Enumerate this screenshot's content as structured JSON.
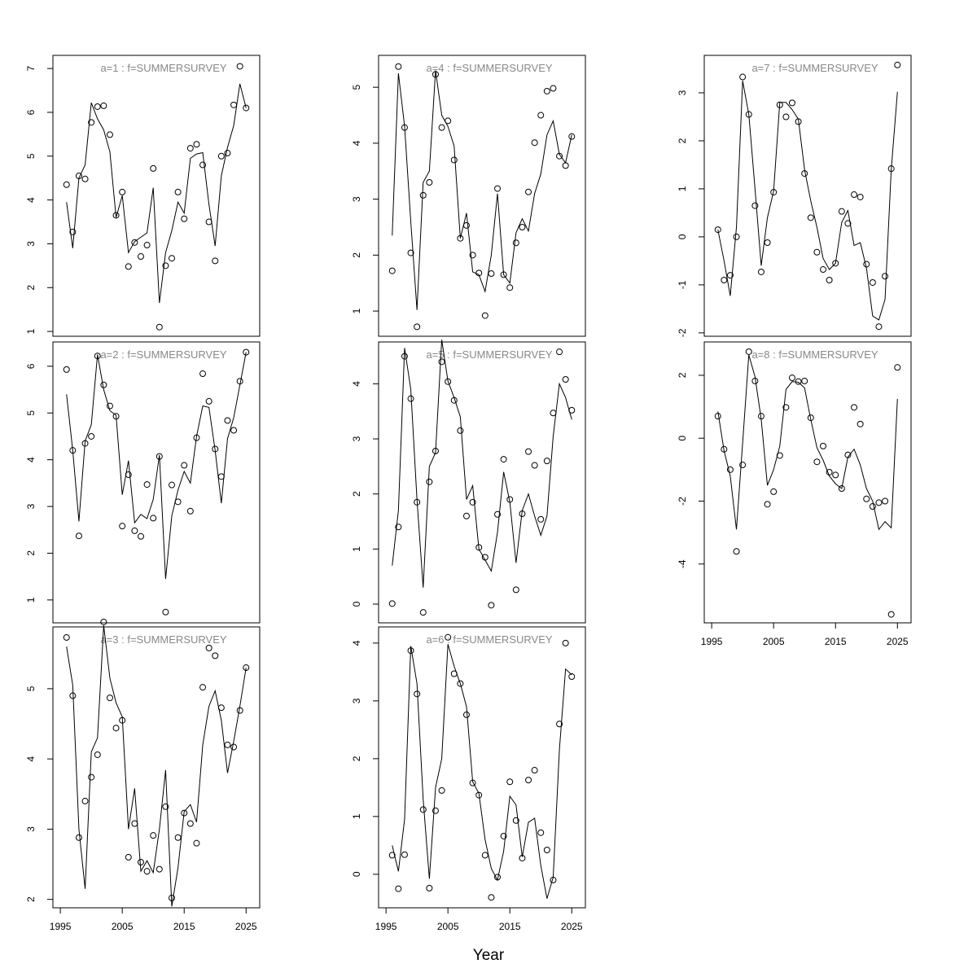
{
  "chart_data": [
    {
      "type": "line",
      "title": "a=1  :  f=SUMMERSURVEY",
      "xlim": [
        1993.8,
        2027.2
      ],
      "ylim": [
        0.89,
        7.3
      ],
      "yticks": [
        1,
        2,
        3,
        4,
        5,
        6,
        7
      ],
      "x": [
        1996,
        1997,
        1998,
        1999,
        2000,
        2001,
        2002,
        2003,
        2004,
        2005,
        2006,
        2007,
        2008,
        2009,
        2010,
        2011,
        2012,
        2013,
        2014,
        2015,
        2016,
        2017,
        2018,
        2019,
        2020,
        2021,
        2022,
        2023,
        2024,
        2025
      ],
      "series": [
        {
          "type": "scatter",
          "color": "#000000",
          "values": [
            4.35,
            3.27,
            4.55,
            4.48,
            5.77,
            6.13,
            6.15,
            5.49,
            3.65,
            4.18,
            2.48,
            3.03,
            2.71,
            2.97,
            4.72,
            1.1,
            2.5,
            2.67,
            4.18,
            3.57,
            5.18,
            5.27,
            4.8,
            3.5,
            2.61,
            5.0,
            5.07,
            6.17,
            7.05,
            6.1
          ]
        },
        {
          "type": "line",
          "color": "#000000",
          "values": [
            3.95,
            2.9,
            4.5,
            4.8,
            6.22,
            5.85,
            5.6,
            5.1,
            3.6,
            4.1,
            2.8,
            3.05,
            3.15,
            3.25,
            4.28,
            1.65,
            2.8,
            3.3,
            3.95,
            3.7,
            4.95,
            5.05,
            5.08,
            3.9,
            2.95,
            4.55,
            5.2,
            5.7,
            6.65,
            6.1
          ]
        }
      ]
    },
    {
      "type": "line",
      "title": "a=2  :  f=SUMMERSURVEY",
      "xlim": [
        1993.8,
        2027.2
      ],
      "ylim": [
        0.51,
        6.52
      ],
      "yticks": [
        1,
        2,
        3,
        4,
        5,
        6
      ],
      "x": [
        1996,
        1997,
        1998,
        1999,
        2000,
        2001,
        2002,
        2003,
        2004,
        2005,
        2006,
        2007,
        2008,
        2009,
        2010,
        2011,
        2012,
        2013,
        2014,
        2015,
        2016,
        2017,
        2018,
        2019,
        2020,
        2021,
        2022,
        2023,
        2024,
        2025
      ],
      "series": [
        {
          "type": "scatter",
          "color": "#000000",
          "values": [
            5.93,
            4.2,
            2.37,
            4.35,
            4.5,
            6.22,
            5.6,
            5.15,
            4.93,
            2.58,
            3.68,
            2.48,
            2.36,
            3.47,
            2.75,
            4.07,
            0.74,
            3.46,
            3.1,
            3.88,
            2.9,
            4.47,
            5.84,
            5.25,
            4.23,
            3.64,
            4.84,
            4.63,
            5.68,
            6.3
          ]
        },
        {
          "type": "line",
          "color": "#000000",
          "values": [
            5.4,
            4.2,
            2.68,
            4.4,
            4.75,
            6.25,
            5.5,
            5.05,
            4.95,
            3.25,
            3.98,
            2.65,
            2.83,
            2.74,
            3.15,
            4.1,
            1.45,
            2.8,
            3.35,
            3.75,
            3.5,
            4.5,
            5.15,
            5.12,
            4.2,
            3.07,
            4.45,
            4.9,
            5.6,
            6.3
          ]
        }
      ]
    },
    {
      "type": "line",
      "title": "a=3  :  f=SUMMERSURVEY",
      "xlim": [
        1993.8,
        2027.2
      ],
      "ylim": [
        1.88,
        5.88
      ],
      "yticks": [
        2,
        3,
        4,
        5
      ],
      "xticks": [
        1995,
        2005,
        2015,
        2025
      ],
      "x": [
        1996,
        1997,
        1998,
        1999,
        2000,
        2001,
        2002,
        2003,
        2004,
        2005,
        2006,
        2007,
        2008,
        2009,
        2010,
        2011,
        2012,
        2013,
        2014,
        2015,
        2016,
        2017,
        2018,
        2019,
        2020,
        2021,
        2022,
        2023,
        2024,
        2025
      ],
      "series": [
        {
          "type": "scatter",
          "color": "#000000",
          "values": [
            5.73,
            4.9,
            2.88,
            3.4,
            3.74,
            4.06,
            5.95,
            4.87,
            4.44,
            4.55,
            2.6,
            3.08,
            2.53,
            2.4,
            2.91,
            2.43,
            3.32,
            2.02,
            2.88,
            3.23,
            3.08,
            2.8,
            5.02,
            5.58,
            5.47,
            4.73,
            4.2,
            4.17,
            4.69,
            5.3
          ]
        },
        {
          "type": "line",
          "color": "#000000",
          "values": [
            5.6,
            5.05,
            3.0,
            2.15,
            4.1,
            4.3,
            5.9,
            5.15,
            4.8,
            4.6,
            3.0,
            3.58,
            2.4,
            2.55,
            2.38,
            3.0,
            3.84,
            1.9,
            2.45,
            3.25,
            3.35,
            3.1,
            4.2,
            4.75,
            4.97,
            4.55,
            3.8,
            4.25,
            4.75,
            5.3
          ]
        }
      ]
    },
    {
      "type": "line",
      "title": "a=4  :  f=SUMMERSURVEY",
      "xlim": [
        1993.8,
        2027.2
      ],
      "ylim": [
        0.55,
        5.57
      ],
      "yticks": [
        1,
        2,
        3,
        4,
        5
      ],
      "x": [
        1996,
        1997,
        1998,
        1999,
        2000,
        2001,
        2002,
        2003,
        2004,
        2005,
        2006,
        2007,
        2008,
        2009,
        2010,
        2011,
        2012,
        2013,
        2014,
        2015,
        2016,
        2017,
        2018,
        2019,
        2020,
        2021,
        2022,
        2023,
        2024,
        2025
      ],
      "series": [
        {
          "type": "scatter",
          "color": "#000000",
          "values": [
            1.72,
            5.37,
            4.28,
            2.04,
            0.72,
            3.07,
            3.3,
            5.23,
            4.28,
            4.4,
            3.7,
            2.3,
            2.53,
            2.0,
            1.68,
            0.92,
            1.67,
            3.19,
            1.65,
            1.42,
            2.22,
            2.5,
            3.13,
            4.01,
            4.5,
            4.93,
            4.98,
            3.77,
            3.6,
            4.12
          ]
        },
        {
          "type": "line",
          "color": "#000000",
          "values": [
            2.35,
            5.25,
            4.3,
            2.6,
            1.02,
            3.3,
            3.5,
            5.3,
            4.5,
            4.3,
            3.95,
            2.3,
            2.75,
            1.7,
            1.65,
            1.35,
            2.0,
            3.1,
            1.65,
            1.5,
            2.4,
            2.65,
            2.43,
            3.1,
            3.45,
            4.15,
            4.4,
            3.8,
            3.65,
            4.15
          ]
        }
      ]
    },
    {
      "type": "line",
      "title": "a=5  :  f=SUMMERSURVEY",
      "xlim": [
        1993.8,
        2027.2
      ],
      "ylim": [
        -0.34,
        4.76
      ],
      "yticks": [
        0,
        1,
        2,
        3,
        4
      ],
      "x": [
        1996,
        1997,
        1998,
        1999,
        2000,
        2001,
        2002,
        2003,
        2004,
        2005,
        2006,
        2007,
        2008,
        2009,
        2010,
        2011,
        2012,
        2013,
        2014,
        2015,
        2016,
        2017,
        2018,
        2019,
        2020,
        2021,
        2022,
        2023,
        2024,
        2025
      ],
      "series": [
        {
          "type": "scatter",
          "color": "#000000",
          "values": [
            0.01,
            1.4,
            4.5,
            3.73,
            1.85,
            -0.15,
            2.22,
            2.78,
            4.4,
            4.04,
            3.7,
            3.15,
            1.6,
            1.85,
            1.03,
            0.85,
            -0.02,
            1.63,
            2.63,
            1.9,
            0.26,
            1.64,
            2.77,
            2.52,
            1.54,
            2.6,
            3.47,
            4.58,
            4.08,
            3.52
          ]
        },
        {
          "type": "line",
          "color": "#000000",
          "values": [
            0.7,
            1.7,
            4.65,
            3.9,
            1.9,
            0.3,
            2.5,
            2.75,
            4.8,
            4.05,
            3.75,
            3.4,
            1.9,
            2.15,
            1.0,
            0.8,
            0.6,
            1.3,
            2.4,
            1.85,
            0.75,
            1.7,
            2.0,
            1.6,
            1.25,
            1.6,
            3.05,
            4.0,
            3.75,
            3.35
          ]
        }
      ]
    },
    {
      "type": "line",
      "title": "a=6  :  f=SUMMERSURVEY",
      "xlim": [
        1993.8,
        2027.2
      ],
      "ylim": [
        -0.58,
        4.28
      ],
      "yticks": [
        0,
        1,
        2,
        3,
        4
      ],
      "xticks": [
        1995,
        2005,
        2015,
        2025
      ],
      "xlabel": "Year",
      "x": [
        1996,
        1997,
        1998,
        1999,
        2000,
        2001,
        2002,
        2003,
        2004,
        2005,
        2006,
        2007,
        2008,
        2009,
        2010,
        2011,
        2012,
        2013,
        2014,
        2015,
        2016,
        2017,
        2018,
        2019,
        2020,
        2021,
        2022,
        2023,
        2024,
        2025
      ],
      "series": [
        {
          "type": "scatter",
          "color": "#000000",
          "values": [
            0.33,
            -0.25,
            0.34,
            3.87,
            3.12,
            1.12,
            -0.24,
            1.1,
            1.45,
            4.1,
            3.47,
            3.3,
            2.76,
            1.58,
            1.37,
            0.33,
            -0.4,
            -0.05,
            0.66,
            1.6,
            0.93,
            0.28,
            1.63,
            1.8,
            0.72,
            0.42,
            -0.1,
            2.6,
            4.0,
            3.42
          ]
        },
        {
          "type": "line",
          "color": "#000000",
          "values": [
            0.5,
            0.05,
            0.95,
            3.95,
            3.3,
            1.3,
            -0.08,
            1.5,
            2.0,
            3.98,
            3.6,
            3.3,
            2.9,
            1.6,
            1.4,
            0.6,
            0.1,
            -0.1,
            0.4,
            1.35,
            1.2,
            0.3,
            0.9,
            0.97,
            0.15,
            -0.42,
            -0.05,
            2.15,
            3.55,
            3.45
          ]
        }
      ]
    },
    {
      "type": "line",
      "title": "a=7  :  f=SUMMERSURVEY",
      "xlim": [
        1993.8,
        2027.2
      ],
      "ylim": [
        -2.07,
        3.78
      ],
      "yticks": [
        -2,
        -1,
        0,
        1,
        2,
        3
      ],
      "x": [
        1996,
        1997,
        1998,
        1999,
        2000,
        2001,
        2002,
        2003,
        2004,
        2005,
        2006,
        2007,
        2008,
        2009,
        2010,
        2011,
        2012,
        2013,
        2014,
        2015,
        2016,
        2017,
        2018,
        2019,
        2020,
        2021,
        2022,
        2023,
        2024,
        2025
      ],
      "series": [
        {
          "type": "scatter",
          "color": "#000000",
          "values": [
            0.15,
            -0.9,
            -0.8,
            0.0,
            3.33,
            2.55,
            0.65,
            -0.73,
            -0.12,
            0.93,
            2.75,
            2.5,
            2.79,
            2.4,
            1.32,
            0.4,
            -0.32,
            -0.68,
            -0.9,
            -0.55,
            0.53,
            0.28,
            0.88,
            0.83,
            -0.57,
            -0.95,
            -1.87,
            -0.82,
            1.42,
            3.58
          ]
        },
        {
          "type": "line",
          "color": "#000000",
          "values": [
            0.15,
            -0.5,
            -1.23,
            0.2,
            3.25,
            2.55,
            1.0,
            -0.6,
            0.4,
            0.95,
            2.8,
            2.8,
            2.65,
            2.45,
            1.4,
            0.75,
            0.2,
            -0.45,
            -0.68,
            -0.55,
            0.3,
            0.55,
            -0.18,
            -0.12,
            -0.65,
            -1.65,
            -1.73,
            -1.3,
            1.4,
            3.02
          ]
        }
      ]
    },
    {
      "type": "line",
      "title": "a=8  :  f=SUMMERSURVEY",
      "xlim": [
        1993.8,
        2027.2
      ],
      "ylim": [
        -5.87,
        3.06
      ],
      "yticks": [
        -4,
        -2,
        0,
        2
      ],
      "xticks": [
        1995,
        2005,
        2015,
        2025
      ],
      "x": [
        1996,
        1997,
        1998,
        1999,
        2000,
        2001,
        2002,
        2003,
        2004,
        2005,
        2006,
        2007,
        2008,
        2009,
        2010,
        2011,
        2012,
        2013,
        2014,
        2015,
        2016,
        2017,
        2018,
        2019,
        2020,
        2021,
        2022,
        2023,
        2024,
        2025
      ],
      "series": [
        {
          "type": "scatter",
          "color": "#000000",
          "values": [
            0.7,
            -0.35,
            -1.0,
            -3.6,
            -0.85,
            2.75,
            1.82,
            0.7,
            -2.1,
            -1.7,
            -0.55,
            0.98,
            1.92,
            1.8,
            1.82,
            0.65,
            -0.75,
            -0.25,
            -1.08,
            -1.17,
            -1.6,
            -0.53,
            0.98,
            0.45,
            -1.93,
            -2.17,
            -2.05,
            -2.0,
            -5.6,
            2.25
          ]
        },
        {
          "type": "line",
          "color": "#000000",
          "values": [
            0.85,
            -0.4,
            -1.2,
            -2.9,
            -0.15,
            2.65,
            1.95,
            0.6,
            -1.5,
            -1.0,
            -0.25,
            1.55,
            1.8,
            1.78,
            1.6,
            0.6,
            -0.3,
            -0.7,
            -1.2,
            -1.45,
            -1.6,
            -0.6,
            -0.35,
            -0.85,
            -1.6,
            -2.0,
            -2.9,
            -2.65,
            -2.85,
            1.25
          ]
        }
      ]
    }
  ]
}
